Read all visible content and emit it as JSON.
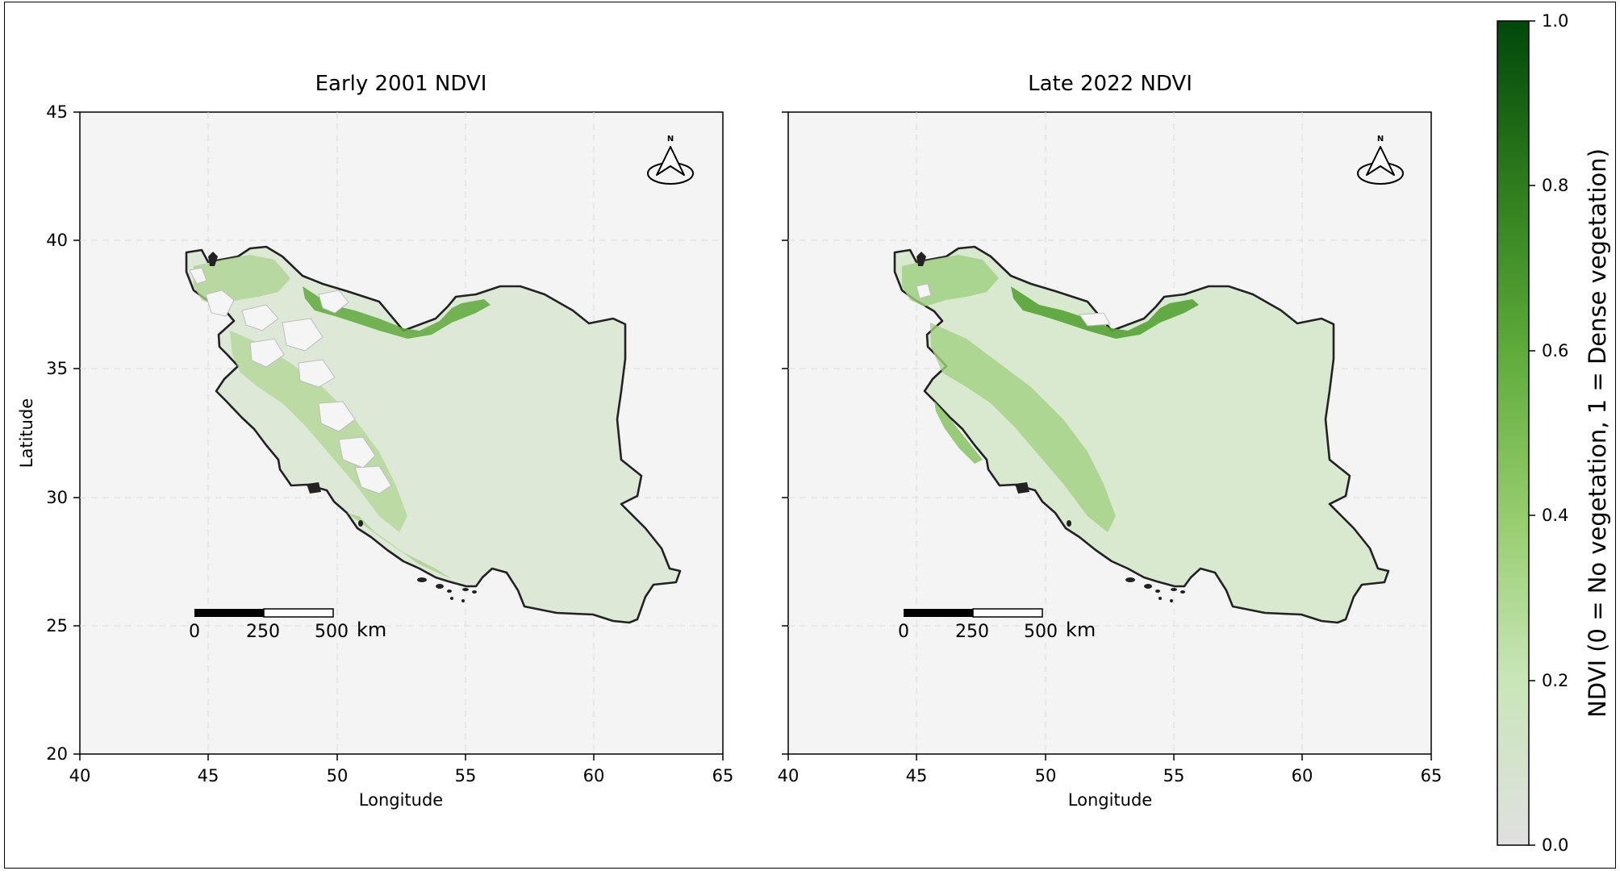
{
  "chart_data": [
    {
      "type": "map",
      "title": "Early 2001 NDVI",
      "xlabel": "Longitude",
      "ylabel": "Latitude",
      "xlim": [
        40,
        65
      ],
      "ylim": [
        20,
        45
      ],
      "xticks": [
        "40",
        "45",
        "50",
        "55",
        "60",
        "65"
      ],
      "yticks": [
        "20",
        "25",
        "30",
        "35",
        "40",
        "45"
      ],
      "grid": true,
      "north_arrow_label": "N",
      "scale_bar": {
        "labels": [
          "0",
          "250",
          "500"
        ],
        "unit": "km"
      }
    },
    {
      "type": "map",
      "title": "Late 2022 NDVI",
      "xlabel": "Longitude",
      "ylabel": "",
      "xlim": [
        40,
        65
      ],
      "ylim": [
        20,
        45
      ],
      "xticks": [
        "40",
        "45",
        "50",
        "55",
        "60",
        "65"
      ],
      "yticks": [],
      "grid": true,
      "north_arrow_label": "N",
      "scale_bar": {
        "labels": [
          "0",
          "250",
          "500"
        ],
        "unit": "km"
      }
    }
  ],
  "colorbar": {
    "label": "NDVI (0 = No vegetation, 1 = Dense vegetation)",
    "ticks": [
      "0.0",
      "0.2",
      "0.4",
      "0.6",
      "0.8",
      "1.0"
    ],
    "min": 0,
    "max": 1,
    "colors": [
      "#e0e0e0",
      "#c9e6b8",
      "#95cc6c",
      "#5eab3a",
      "#2e7d1c",
      "#00480a"
    ]
  },
  "colors": {
    "panel_background": "#f4f4f4",
    "land_fill": "#dde8d6",
    "border": "#222222"
  }
}
